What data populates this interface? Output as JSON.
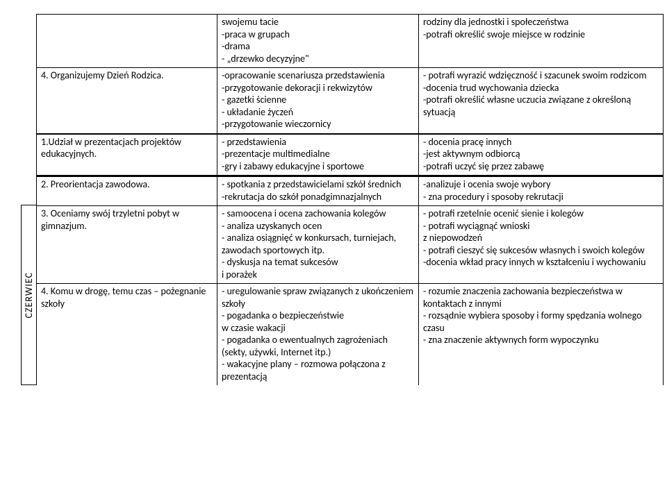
{
  "month_label": "CZERWIEC",
  "rows_top": [
    {
      "topic": "",
      "activities": "swojemu tacie\n-praca w grupach\n-drama\n- „drzewko decyzyjne\"",
      "outcomes": "rodziny dla jednostki i społeczeństwa\n-potrafi określić swoje miejsce w rodzinie"
    },
    {
      "topic": "4. Organizujemy Dzień Rodzica.",
      "activities": "-opracowanie scenariusza przedstawienia\n-przygotowanie dekoracji i rekwizytów\n- gazetki ścienne\n- układanie życzeń\n-przygotowanie wieczornicy",
      "outcomes": "- potrafi wyrazić wdzięczność i szacunek swoim rodzicom\n-docenia trud wychowania dziecka\n-potrafi określić własne uczucia związane z określoną sytuacją"
    },
    {
      "topic": "1.Udział w  prezentacjach  projektów edukacyjnych.",
      "activities": "- przedstawienia\n-prezentacje multimedialne\n-gry i zabawy edukacyjne i sportowe",
      "outcomes": "- docenia pracę innych\n-jest aktywnym odbiorcą\n-potrafi uczyć się przez zabawę"
    }
  ],
  "rows_bottom": [
    {
      "topic": "2. Preorientacja zawodowa.",
      "activities": "- spotkania z przedstawicielami szkół średnich\n-rekrutacja do szkół ponadgimnazjalnych",
      "outcomes": "-analizuje i ocenia swoje wybory\n- zna procedury i sposoby rekrutacji"
    },
    {
      "topic": "3. Oceniamy swój trzyletni pobyt w gimnazjum.",
      "activities": "- samoocena i ocena zachowania kolegów\n- analiza uzyskanych ocen\n- analiza osiągnięć w konkursach, turniejach, zawodach sportowych itp.\n- dyskusja na temat sukcesów\ni porażek",
      "outcomes": "- potrafi rzetelnie ocenić sienie i kolegów\n- potrafi wyciągnąć wnioski\nz niepowodzeń\n- potrafi cieszyć się sukcesów własnych i swoich kolegów\n-docenia wkład pracy innych w kształceniu i wychowaniu"
    },
    {
      "topic": "4. Komu w drogę, temu czas – pożegnanie szkoły",
      "activities": "- uregulowanie spraw związanych z ukończeniem szkoły\n- pogadanka o bezpieczeństwie\n w czasie wakacji\n- pogadanka o ewentualnych zagrożeniach (sekty, używki, Internet itp.)\n- wakacyjne plany – rozmowa połączona z prezentacją",
      "outcomes": "- rozumie znaczenia zachowania bezpieczeństwa w kontaktach z innymi\n- rozsądnie wybiera sposoby i formy spędzania wolnego czasu\n- zna znaczenie aktywnych form wypoczynku"
    }
  ]
}
